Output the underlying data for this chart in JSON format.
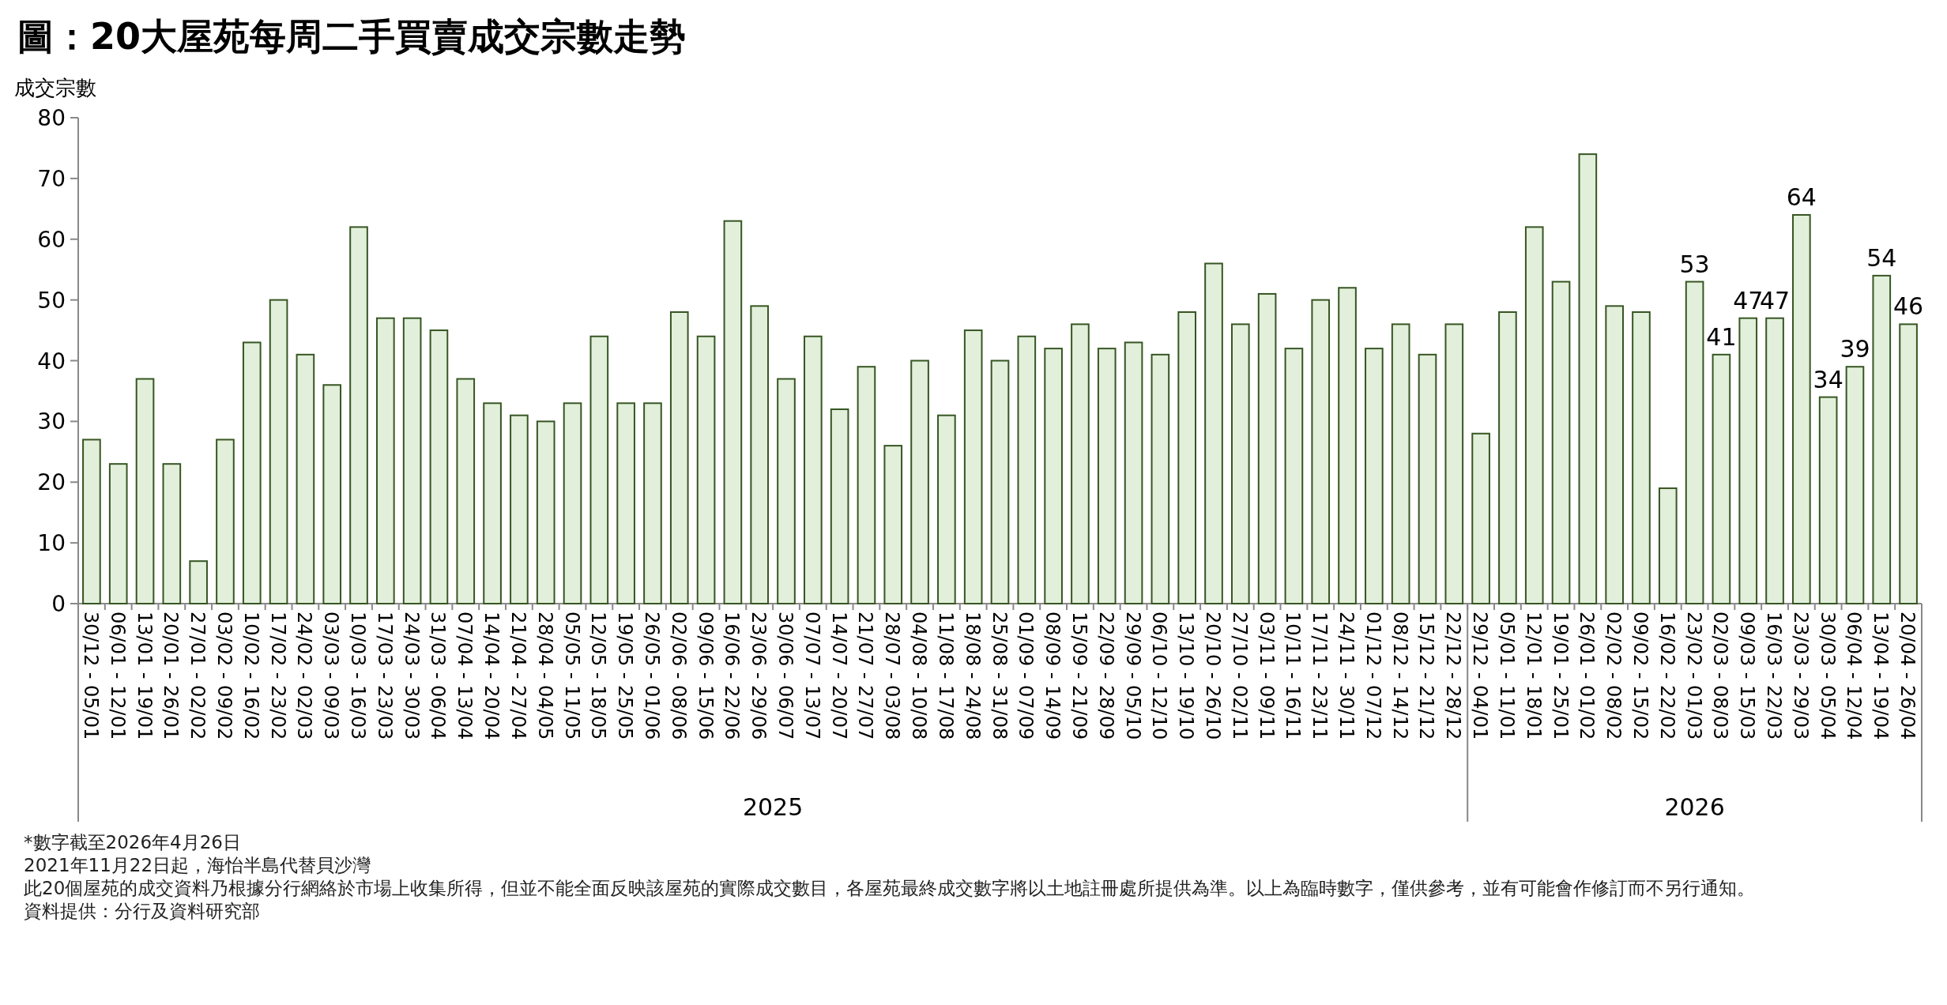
{
  "chart_data": {
    "type": "bar",
    "title": "圖：20大屋苑每周二手買賣成交宗數走勢",
    "ylabel": "成交宗數",
    "categories": [
      "30/12 - 05/01",
      "06/01 - 12/01",
      "13/01 - 19/01",
      "20/01 - 26/01",
      "27/01 - 02/02",
      "03/02 - 09/02",
      "10/02 - 16/02",
      "17/02 - 23/02",
      "24/02 - 02/03",
      "03/03 - 09/03",
      "10/03 - 16/03",
      "17/03 - 23/03",
      "24/03 - 30/03",
      "31/03 - 06/04",
      "07/04 - 13/04",
      "14/04 - 20/04",
      "21/04 - 27/04",
      "28/04 - 04/05",
      "05/05 - 11/05",
      "12/05 - 18/05",
      "19/05 - 25/05",
      "26/05 - 01/06",
      "02/06 - 08/06",
      "09/06 - 15/06",
      "16/06 - 22/06",
      "23/06 - 29/06",
      "30/06 - 06/07",
      "07/07 - 13/07",
      "14/07 - 20/07",
      "21/07 - 27/07",
      "28/07 - 03/08",
      "04/08 - 10/08",
      "11/08 - 17/08",
      "18/08 - 24/08",
      "25/08 - 31/08",
      "01/09 - 07/09",
      "08/09 - 14/09",
      "15/09 - 21/09",
      "22/09 - 28/09",
      "29/09 - 05/10",
      "06/10 - 12/10",
      "13/10 - 19/10",
      "20/10 - 26/10",
      "27/10 - 02/11",
      "03/11 - 09/11",
      "10/11 - 16/11",
      "17/11 - 23/11",
      "24/11 - 30/11",
      "01/12 - 07/12",
      "08/12 - 14/12",
      "15/12 - 21/12",
      "22/12 - 28/12",
      "29/12 - 04/01",
      "05/01 - 11/01",
      "12/01 - 18/01",
      "19/01 - 25/01",
      "26/01 - 01/02",
      "02/02 - 08/02",
      "09/02 - 15/02",
      "16/02 - 22/02",
      "23/02 - 01/03",
      "02/03 - 08/03",
      "09/03 - 15/03",
      "16/03 - 22/03",
      "23/03 - 29/03",
      "30/03 - 05/04",
      "06/04 - 12/04",
      "13/04 - 19/04",
      "20/04 - 26/04"
    ],
    "values": [
      27,
      23,
      37,
      23,
      7,
      27,
      43,
      50,
      41,
      36,
      62,
      47,
      47,
      45,
      37,
      33,
      31,
      30,
      33,
      44,
      33,
      33,
      48,
      44,
      63,
      49,
      37,
      44,
      32,
      39,
      26,
      40,
      31,
      45,
      40,
      44,
      42,
      46,
      42,
      43,
      41,
      48,
      56,
      46,
      51,
      42,
      50,
      52,
      42,
      46,
      41,
      46,
      28,
      48,
      62,
      53,
      74,
      49,
      48,
      19,
      53,
      41,
      47,
      47,
      64,
      34,
      39,
      54,
      46
    ],
    "value_labels": [
      null,
      null,
      null,
      null,
      null,
      null,
      null,
      null,
      null,
      null,
      null,
      null,
      null,
      null,
      null,
      null,
      null,
      null,
      null,
      null,
      null,
      null,
      null,
      null,
      null,
      null,
      null,
      null,
      null,
      null,
      null,
      null,
      null,
      null,
      null,
      null,
      null,
      null,
      null,
      null,
      null,
      null,
      null,
      null,
      null,
      null,
      null,
      null,
      null,
      null,
      null,
      null,
      null,
      null,
      null,
      null,
      null,
      null,
      null,
      null,
      "53",
      "41",
      "47",
      "47",
      "64",
      "34",
      "39",
      "54",
      "46"
    ],
    "color": "#e2efda",
    "ylim": [
      0,
      80
    ],
    "yticks": [
      0,
      10,
      20,
      30,
      40,
      50,
      60,
      70,
      80
    ],
    "grid": false,
    "annotations": [
      "2025",
      "2026",
      "*數字截至2026年4月26日",
      "2021年11月22日起，海怡半島代替貝沙灣",
      "此20個屋苑的成交資料乃根據分行網絡於市場上收集所得，但並不能全面反映該屋苑的實際成交數目，各屋苑最終成交數字將以土地註冊處所提供為準。以上為臨時數字，僅供參考，並有可能會作修訂而不另行通知。",
      "資料提供：分行及資料研究部"
    ]
  }
}
